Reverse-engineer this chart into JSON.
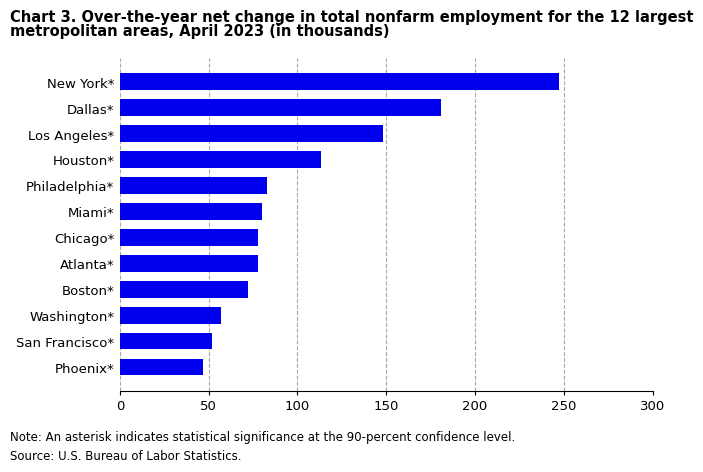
{
  "title_line1": "Chart 3. Over-the-year net change in total nonfarm employment for the 12 largest",
  "title_line2": "metropolitan areas, April 2023 (in thousands)",
  "categories": [
    "New York*",
    "Dallas*",
    "Los Angeles*",
    "Houston*",
    "Philadelphia*",
    "Miami*",
    "Chicago*",
    "Atlanta*",
    "Boston*",
    "Washington*",
    "San Francisco*",
    "Phoenix*"
  ],
  "values": [
    247,
    181,
    148,
    113,
    83,
    80,
    78,
    78,
    72,
    57,
    52,
    47
  ],
  "bar_color": "#0000ee",
  "xlim": [
    0,
    300
  ],
  "xticks": [
    0,
    50,
    100,
    150,
    200,
    250,
    300
  ],
  "note": "Note: An asterisk indicates statistical significance at the 90-percent confidence level.",
  "source": "Source: U.S. Bureau of Labor Statistics.",
  "title_fontsize": 10.5,
  "label_fontsize": 9.5,
  "tick_fontsize": 9.5,
  "note_fontsize": 8.5
}
